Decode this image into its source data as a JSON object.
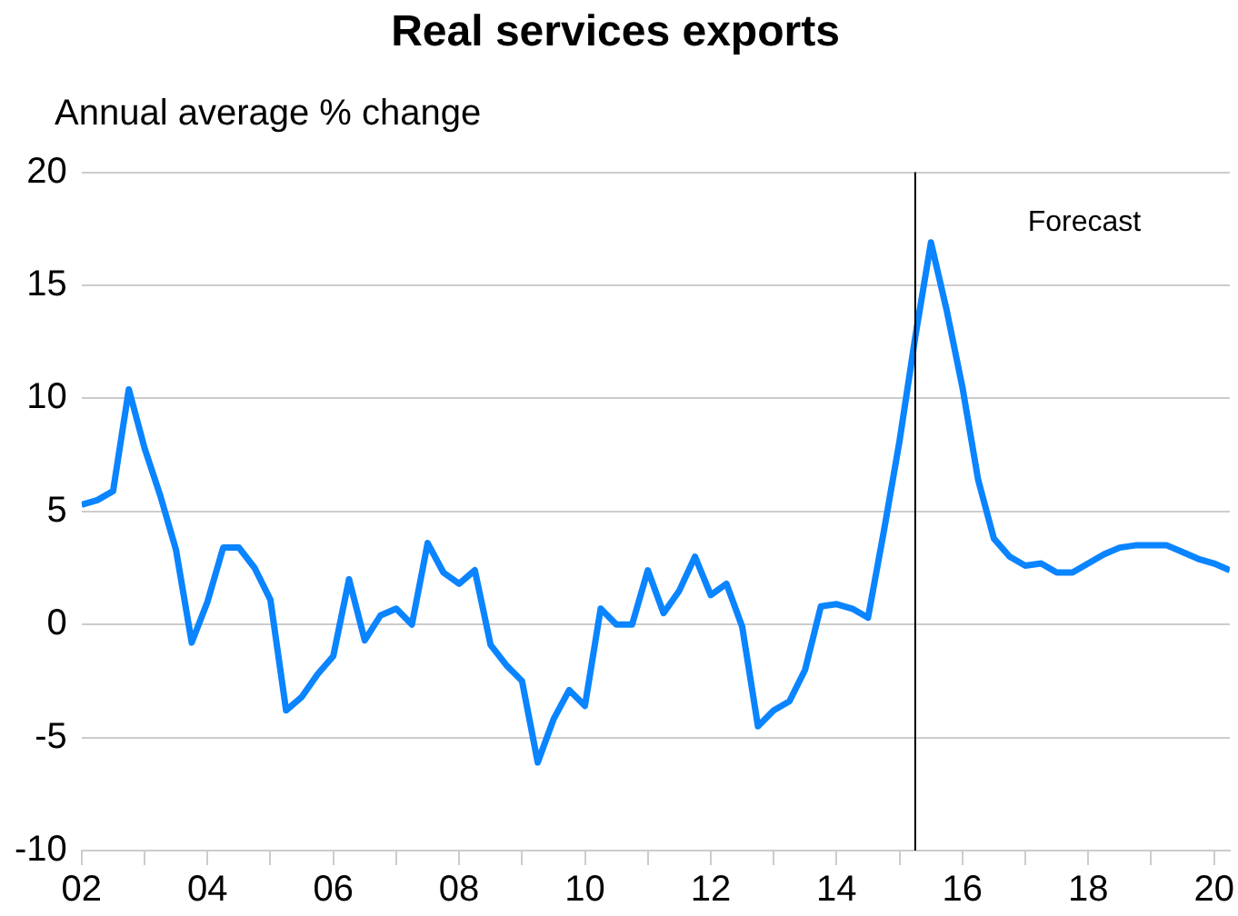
{
  "chart_data": {
    "type": "line",
    "title": "Real services exports",
    "ylabel": "Annual average % change",
    "x": [
      2002,
      2002.25,
      2002.5,
      2002.75,
      2003,
      2003.25,
      2003.5,
      2003.75,
      2004,
      2004.25,
      2004.5,
      2004.75,
      2005,
      2005.25,
      2005.5,
      2005.75,
      2006,
      2006.25,
      2006.5,
      2006.75,
      2007,
      2007.25,
      2007.5,
      2007.75,
      2008,
      2008.25,
      2008.5,
      2008.75,
      2009,
      2009.25,
      2009.5,
      2009.75,
      2010,
      2010.25,
      2010.5,
      2010.75,
      2011,
      2011.25,
      2011.5,
      2011.75,
      2012,
      2012.25,
      2012.5,
      2012.75,
      2013,
      2013.25,
      2013.5,
      2013.75,
      2014,
      2014.25,
      2014.5,
      2014.75,
      2015,
      2015.25,
      2015.5,
      2015.75,
      2016,
      2016.25,
      2016.5,
      2016.75,
      2017,
      2017.25,
      2017.5,
      2017.75,
      2018,
      2018.25,
      2018.5,
      2018.75,
      2019,
      2019.25,
      2019.5,
      2019.75,
      2020,
      2020.25
    ],
    "series": [
      {
        "color": "#0a84ff",
        "values": [
          5.3,
          5.5,
          5.9,
          10.4,
          7.8,
          5.7,
          3.3,
          -0.8,
          1.0,
          3.4,
          3.4,
          2.5,
          1.1,
          -3.8,
          -3.2,
          -2.2,
          -1.4,
          2.0,
          -0.7,
          0.4,
          0.7,
          0.0,
          3.6,
          2.3,
          1.8,
          2.4,
          -0.9,
          -1.8,
          -2.5,
          -6.1,
          -4.2,
          -2.9,
          -3.6,
          0.7,
          0.0,
          0.0,
          2.4,
          0.5,
          1.5,
          3.0,
          1.3,
          1.8,
          -0.1,
          -4.5,
          -3.8,
          -3.4,
          -2.0,
          0.8,
          0.9,
          0.7,
          0.3,
          4.1,
          8.1,
          12.7,
          16.9,
          13.9,
          10.5,
          6.4,
          3.8,
          3.0,
          2.6,
          2.7,
          2.3,
          2.3,
          2.7,
          3.1,
          3.4,
          3.5,
          3.5,
          3.5,
          3.2,
          2.9,
          2.7,
          2.4
        ]
      }
    ],
    "xlim": [
      2002,
      2020.25
    ],
    "xticks": [
      {
        "value": 2002,
        "label": "02"
      },
      {
        "value": 2003,
        "label": null
      },
      {
        "value": 2004,
        "label": "04"
      },
      {
        "value": 2005,
        "label": null
      },
      {
        "value": 2006,
        "label": "06"
      },
      {
        "value": 2007,
        "label": null
      },
      {
        "value": 2008,
        "label": "08"
      },
      {
        "value": 2009,
        "label": null
      },
      {
        "value": 2010,
        "label": "10"
      },
      {
        "value": 2011,
        "label": null
      },
      {
        "value": 2012,
        "label": "12"
      },
      {
        "value": 2013,
        "label": null
      },
      {
        "value": 2014,
        "label": "14"
      },
      {
        "value": 2015,
        "label": null
      },
      {
        "value": 2016,
        "label": "16"
      },
      {
        "value": 2017,
        "label": null
      },
      {
        "value": 2018,
        "label": "18"
      },
      {
        "value": 2019,
        "label": null
      },
      {
        "value": 2020,
        "label": "20"
      }
    ],
    "ylim": [
      -10,
      20
    ],
    "yticks": [
      -10,
      -5,
      0,
      5,
      10,
      15,
      20
    ],
    "grid": "y",
    "legend": false,
    "marker": "none",
    "line_style": "solid",
    "ref_lines": [
      {
        "axis": "x",
        "value": 2015.25,
        "color": "#000000"
      }
    ],
    "annotations": [
      "Forecast"
    ]
  }
}
